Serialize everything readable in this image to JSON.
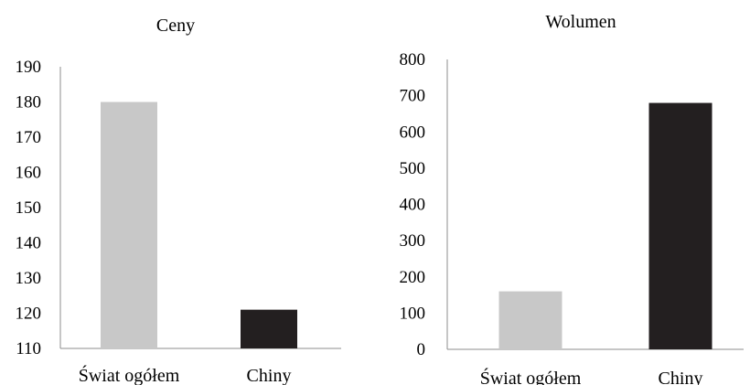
{
  "chart_data": [
    {
      "type": "bar",
      "title": "Ceny",
      "categories": [
        "Świat ogółem",
        "Chiny"
      ],
      "values": [
        180,
        121
      ],
      "colors": [
        "#c8c8c8",
        "#231f20"
      ],
      "ylim": [
        110,
        190
      ],
      "yticks": [
        110,
        120,
        130,
        140,
        150,
        160,
        170,
        180,
        190
      ],
      "xlabel": "",
      "ylabel": "",
      "grid": false,
      "legend": false
    },
    {
      "type": "bar",
      "title": "Wolumen",
      "categories": [
        "Świat ogółem",
        "Chiny"
      ],
      "values": [
        160,
        680
      ],
      "colors": [
        "#c8c8c8",
        "#231f20"
      ],
      "ylim": [
        0,
        800
      ],
      "yticks": [
        0,
        100,
        200,
        300,
        400,
        500,
        600,
        700,
        800
      ],
      "xlabel": "",
      "ylabel": "",
      "grid": false,
      "legend": false
    }
  ]
}
